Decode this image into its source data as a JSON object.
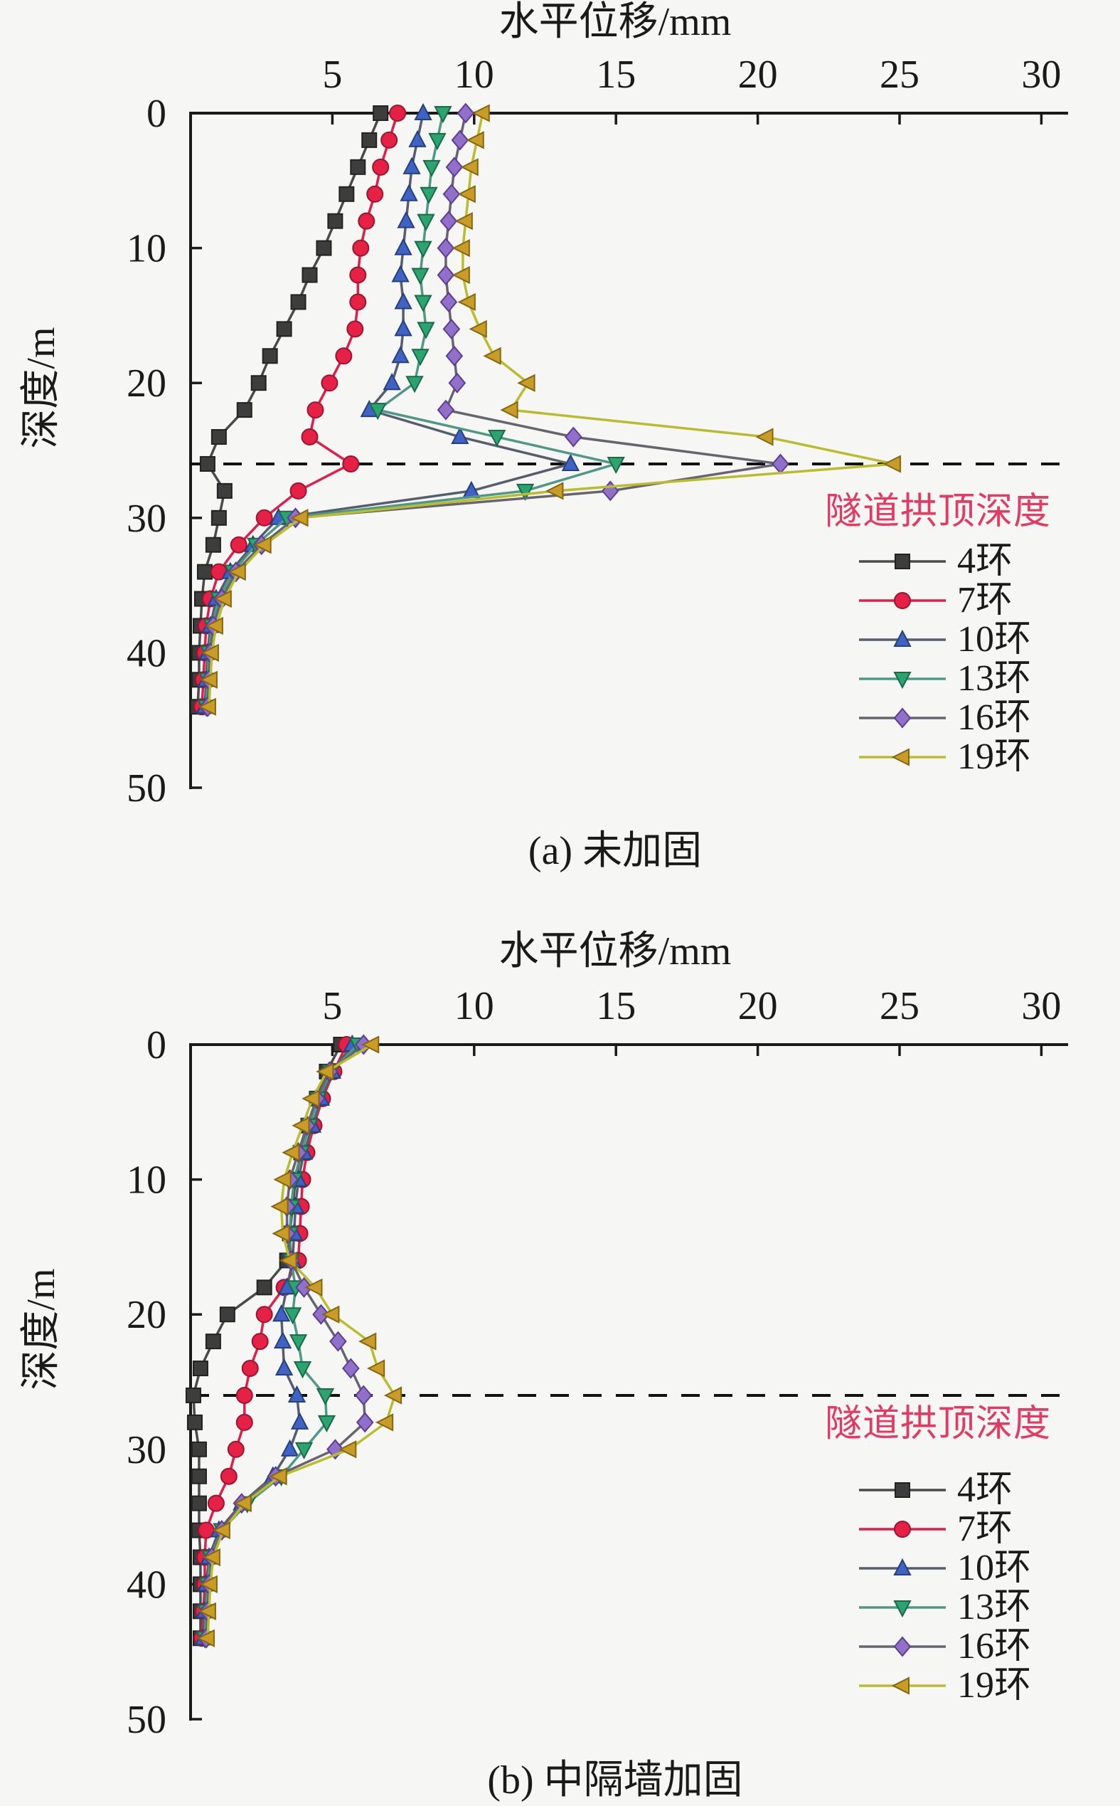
{
  "page": {
    "background": "#f6f6f4"
  },
  "legend": {
    "title": "隧道拱顶深度",
    "title_color": "#e23a62",
    "items": [
      {
        "label": "4环",
        "marker": "square",
        "marker_color": "#3d3d3d",
        "marker_edge": "#222222",
        "line_color": "#4a4a4a"
      },
      {
        "label": "7环",
        "marker": "circle",
        "marker_color": "#e52245",
        "marker_edge": "#9c1430",
        "line_color": "#dd1f4a"
      },
      {
        "label": "10环",
        "marker": "triangle-up",
        "marker_color": "#3f62c4",
        "marker_edge": "#24407e",
        "line_color": "#565d6e"
      },
      {
        "label": "13环",
        "marker": "triangle-down",
        "marker_color": "#2ca46e",
        "marker_edge": "#19694a",
        "line_color": "#4f9886"
      },
      {
        "label": "16环",
        "marker": "diamond",
        "marker_color": "#9070c8",
        "marker_edge": "#5c3d94",
        "line_color": "#67646f"
      },
      {
        "label": "19环",
        "marker": "triangle-left",
        "marker_color": "#c89c26",
        "marker_edge": "#86660e",
        "line_color": "#b9bc2e"
      }
    ]
  },
  "chart_data": [
    {
      "type": "line",
      "title": "(a) 未加固",
      "xlabel": "水平位移/mm",
      "ylabel": "深度/m",
      "x_ticks": [
        5,
        10,
        15,
        20,
        25,
        30
      ],
      "y_ticks": [
        0,
        10,
        20,
        30,
        40,
        50
      ],
      "x_range": [
        0,
        30
      ],
      "depth_range": [
        0,
        50
      ],
      "crown_depth_dashed_line_m": 26,
      "depths_m": [
        0,
        2,
        4,
        6,
        8,
        10,
        12,
        14,
        16,
        18,
        20,
        22,
        24,
        26,
        28,
        30,
        32,
        34,
        36,
        38,
        40,
        42,
        44
      ],
      "series": [
        {
          "name": "4环",
          "values": [
            6.7,
            6.3,
            5.9,
            5.5,
            5.1,
            4.7,
            4.2,
            3.8,
            3.3,
            2.8,
            2.4,
            1.9,
            1.0,
            0.6,
            1.2,
            1.0,
            0.8,
            0.5,
            0.4,
            0.35,
            0.3,
            0.3,
            0.25
          ]
        },
        {
          "name": "7环",
          "values": [
            7.3,
            7.0,
            6.7,
            6.5,
            6.2,
            6.0,
            5.9,
            5.9,
            5.8,
            5.4,
            4.9,
            4.4,
            4.2,
            5.65,
            3.8,
            2.6,
            1.7,
            1.0,
            0.7,
            0.55,
            0.5,
            0.45,
            0.4
          ]
        },
        {
          "name": "10环",
          "values": [
            8.2,
            8.0,
            7.8,
            7.7,
            7.6,
            7.5,
            7.4,
            7.5,
            7.5,
            7.4,
            7.1,
            6.3,
            9.5,
            13.4,
            9.9,
            3.1,
            2.2,
            1.4,
            0.9,
            0.7,
            0.6,
            0.55,
            0.5
          ]
        },
        {
          "name": "13环",
          "values": [
            8.9,
            8.7,
            8.5,
            8.4,
            8.3,
            8.2,
            8.1,
            8.2,
            8.3,
            8.1,
            7.9,
            6.6,
            10.8,
            15.0,
            11.8,
            3.4,
            2.3,
            1.5,
            1.0,
            0.75,
            0.65,
            0.6,
            0.55
          ]
        },
        {
          "name": "16环",
          "values": [
            9.7,
            9.5,
            9.3,
            9.2,
            9.1,
            9.0,
            9.0,
            9.1,
            9.2,
            9.3,
            9.4,
            9.0,
            13.5,
            20.8,
            14.8,
            3.7,
            2.5,
            1.6,
            1.1,
            0.8,
            0.7,
            0.65,
            0.6
          ]
        },
        {
          "name": "19环",
          "values": [
            10.3,
            10.1,
            9.9,
            9.8,
            9.7,
            9.6,
            9.6,
            9.8,
            10.2,
            10.7,
            11.9,
            11.3,
            20.3,
            24.8,
            12.9,
            3.9,
            2.6,
            1.7,
            1.2,
            0.9,
            0.75,
            0.7,
            0.65
          ]
        }
      ]
    },
    {
      "type": "line",
      "title": "(b) 中隔墙加固",
      "xlabel": "水平位移/mm",
      "ylabel": "深度/m",
      "x_ticks": [
        5,
        10,
        15,
        20,
        25,
        30
      ],
      "y_ticks": [
        0,
        10,
        20,
        30,
        40,
        50
      ],
      "x_range": [
        0,
        30
      ],
      "depth_range": [
        0,
        50
      ],
      "crown_depth_dashed_line_m": 26,
      "depths_m": [
        0,
        2,
        4,
        6,
        8,
        10,
        12,
        14,
        16,
        18,
        20,
        22,
        24,
        26,
        28,
        30,
        32,
        34,
        36,
        38,
        40,
        42,
        44
      ],
      "series": [
        {
          "name": "4环",
          "values": [
            5.3,
            4.8,
            4.45,
            4.15,
            3.9,
            3.7,
            3.6,
            3.5,
            3.4,
            2.6,
            1.3,
            0.8,
            0.35,
            0.1,
            0.15,
            0.3,
            0.3,
            0.3,
            0.3,
            0.35,
            0.35,
            0.35,
            0.35
          ]
        },
        {
          "name": "7环",
          "values": [
            5.5,
            5.05,
            4.65,
            4.35,
            4.1,
            3.95,
            3.9,
            3.85,
            3.8,
            3.3,
            2.6,
            2.45,
            2.1,
            1.9,
            1.9,
            1.6,
            1.35,
            0.9,
            0.55,
            0.5,
            0.5,
            0.45,
            0.4
          ]
        },
        {
          "name": "10环",
          "values": [
            5.7,
            5.0,
            4.6,
            4.3,
            4.0,
            3.8,
            3.7,
            3.65,
            3.6,
            3.4,
            3.2,
            3.25,
            3.3,
            3.75,
            3.85,
            3.5,
            2.9,
            1.8,
            1.0,
            0.65,
            0.55,
            0.5,
            0.45
          ]
        },
        {
          "name": "13环",
          "values": [
            5.9,
            4.95,
            4.5,
            4.2,
            3.9,
            3.65,
            3.55,
            3.5,
            3.55,
            3.7,
            3.6,
            3.8,
            3.95,
            4.75,
            4.8,
            4.0,
            3.2,
            2.0,
            1.1,
            0.7,
            0.6,
            0.55,
            0.5
          ]
        },
        {
          "name": "16环",
          "values": [
            6.1,
            4.9,
            4.45,
            4.1,
            3.8,
            3.5,
            3.4,
            3.4,
            3.55,
            4.0,
            4.6,
            5.2,
            5.65,
            6.1,
            6.15,
            5.1,
            3.0,
            1.8,
            1.1,
            0.75,
            0.65,
            0.6,
            0.55
          ]
        },
        {
          "name": "19环",
          "values": [
            6.4,
            4.8,
            4.3,
            3.95,
            3.6,
            3.3,
            3.2,
            3.25,
            3.5,
            4.4,
            5.0,
            6.3,
            6.6,
            7.2,
            6.9,
            5.6,
            3.15,
            1.9,
            1.15,
            0.8,
            0.7,
            0.65,
            0.6
          ]
        }
      ]
    }
  ]
}
